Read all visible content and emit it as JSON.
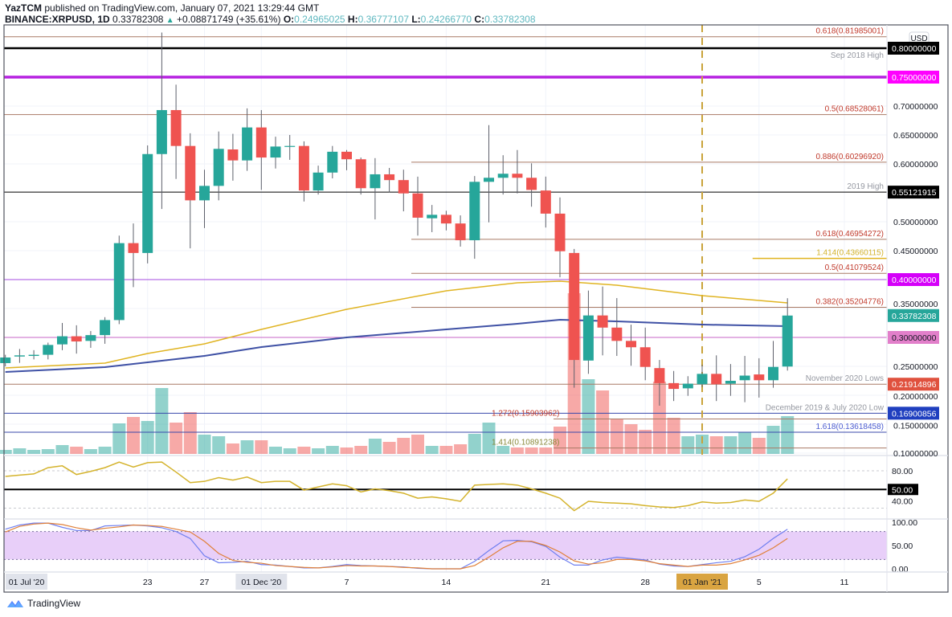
{
  "header": {
    "author": "YazTCM",
    "published": " published on TradingView.com, January 07, 2021 13:29:44 GMT",
    "symbol": "BINANCE:XRPUSD, 1D",
    "last": "0.33782308",
    "arrow": "▲",
    "change": "+0.08871749 (+35.61%)",
    "o_label": "O:",
    "o": "0.24965025",
    "h_label": "H:",
    "h": "0.36777107",
    "l_label": "L:",
    "l": "0.24266770",
    "c_label": "C:",
    "c": "0.33782308"
  },
  "colors": {
    "up": "#26a69a",
    "down": "#ef5350",
    "fib": "#a97a66",
    "fib_text": "#c0392b",
    "blue_level": "#3949ab",
    "ma_yellow": "#e0b422",
    "ma_blue": "#3f51a5",
    "rsi": "#d4b32c",
    "stoch_k": "#6f7ff0",
    "stoch_d": "#e0803a",
    "stoch_band": "#e8cff9",
    "jan_marker": "#c9a33a"
  },
  "price_axis": {
    "currency": "USD",
    "ticks": [
      {
        "price": 0.7,
        "label": "0.70000000"
      },
      {
        "price": 0.65,
        "label": "0.65000000"
      },
      {
        "price": 0.6,
        "label": "0.60000000"
      },
      {
        "price": 0.5,
        "label": "0.50000000"
      },
      {
        "price": 0.45,
        "label": "0.45000000"
      },
      {
        "price": 0.35,
        "label": "0.35000000"
      },
      {
        "price": 0.25,
        "label": "0.25000000"
      },
      {
        "price": 0.2,
        "label": "0.20000000"
      },
      {
        "price": 0.15,
        "label": "0.15000000"
      },
      {
        "price": 0.1,
        "label": "0.10000000"
      }
    ],
    "tags": [
      {
        "price": 0.8,
        "label": "0.80000000",
        "bg": "#000000",
        "fg": "#ffffff"
      },
      {
        "price": 0.75,
        "label": "0.75000000",
        "bg": "#ff00ff",
        "fg": "#ffffff"
      },
      {
        "price": 0.55121915,
        "label": "0.55121915",
        "bg": "#000000",
        "fg": "#ffffff"
      },
      {
        "price": 0.4,
        "label": "0.40000000",
        "bg": "#d500f9",
        "fg": "#ffffff"
      },
      {
        "price": 0.33782308,
        "label": "0.33782308",
        "bg": "#26a69a",
        "fg": "#ffffff"
      },
      {
        "price": 0.3,
        "label": "0.30000000",
        "bg": "#e27fca",
        "fg": "#131722"
      },
      {
        "price": 0.21914896,
        "label": "0.21914896",
        "bg": "#e0513e",
        "fg": "#ffffff"
      },
      {
        "price": 0.16900856,
        "label": "0.16900856",
        "bg": "#1f3fbf",
        "fg": "#ffffff"
      }
    ]
  },
  "levels": [
    {
      "price": 0.81985001,
      "label": "0.618(0.81985001)",
      "color": "#a97a66",
      "text_color": "#c0392b",
      "width": 1,
      "start": -1
    },
    {
      "price": 0.8,
      "label": "Sep 2018 High",
      "color": "#000000",
      "text_color": "#9598a1",
      "width": 2.5,
      "start": -1,
      "label_below": true
    },
    {
      "price": 0.75,
      "label": "",
      "color": "#b620e0",
      "width": 3.5,
      "start": -1
    },
    {
      "price": 0.68528061,
      "label": "0.5(0.68528061)",
      "color": "#a97a66",
      "text_color": "#c0392b",
      "width": 1,
      "start": -1
    },
    {
      "price": 0.6029692,
      "label": "0.886(0.60296920)",
      "color": "#a97a66",
      "text_color": "#c0392b",
      "width": 1,
      "start": 29
    },
    {
      "price": 0.55121915,
      "label": "2019 High",
      "color": "#000000",
      "text_color": "#9598a1",
      "width": 1,
      "start": -1
    },
    {
      "price": 0.46954272,
      "label": "0.618(0.46954272)",
      "color": "#a97a66",
      "text_color": "#c0392b",
      "width": 1,
      "start": 29
    },
    {
      "price": 0.43660115,
      "label": "1.414(0.43660115)",
      "color": "#e0b422",
      "text_color": "#d4b32c",
      "width": 1.5,
      "start": 53
    },
    {
      "price": 0.41079524,
      "label": "0.5(0.41079524)",
      "color": "#a97a66",
      "text_color": "#c0392b",
      "width": 1,
      "start": 29
    },
    {
      "price": 0.4,
      "label": "",
      "color": "#a64de0",
      "width": 1,
      "start": -1
    },
    {
      "price": 0.35204776,
      "label": "0.382(0.35204776)",
      "color": "#a97a66",
      "text_color": "#c0392b",
      "width": 1,
      "start": 29
    },
    {
      "price": 0.3,
      "label": "",
      "color": "#c764c7",
      "width": 1,
      "start": -1
    },
    {
      "price": 0.21914896,
      "label": "November 2020 Lows",
      "color": "#a97a66",
      "text_color": "#9598a1",
      "width": 1,
      "start": -1
    },
    {
      "price": 0.16900856,
      "label": "December 2019 & July 2020 Low",
      "color": "#3949ab",
      "text_color": "#9598a1",
      "width": 1,
      "start": -1
    },
    {
      "price": 0.15903962,
      "label": "1.272(0.15903962)",
      "color": "#a97a66",
      "text_color": "#c0392b",
      "width": 1,
      "start": 39,
      "label_left": true
    },
    {
      "price": 0.13618458,
      "label": "1.618(0.13618458)",
      "color": "#3949ab",
      "text_color": "#4a5bd0",
      "width": 1,
      "start": -1
    },
    {
      "price": 0.10891238,
      "label": "1.414(0.10891238)",
      "color": "#a97a66",
      "text_color": "#8a8a3a",
      "width": 1,
      "start": 39,
      "label_left": true
    }
  ],
  "rsi_axis": {
    "top_label": "80.00",
    "mid_tag": "50.00",
    "low_label": "40.00"
  },
  "stoch_axis": {
    "top_label": "100.00",
    "mid_label": "50.00",
    "low_label": "0.00"
  },
  "time_axis": {
    "sticky_label": "01 Jul '20",
    "ticks": [
      {
        "index": 10,
        "label": "23"
      },
      {
        "index": 14,
        "label": "27"
      },
      {
        "index": 18,
        "label": "01 Dec '20",
        "style": "gray"
      },
      {
        "index": 24,
        "label": "7"
      },
      {
        "index": 31,
        "label": "14"
      },
      {
        "index": 38,
        "label": "21"
      },
      {
        "index": 45,
        "label": "28"
      },
      {
        "index": 49,
        "label": "01 Jan '21",
        "style": "orange"
      },
      {
        "index": 53,
        "label": "5"
      },
      {
        "index": 59,
        "label": "11"
      }
    ],
    "marker_index": 49
  },
  "footer": {
    "brand": "TradingView"
  },
  "chart_data": {
    "type": "candlestick",
    "title": "BINANCE:XRPUSD, 1D",
    "first_date": "2020-11-13",
    "last_date": "2021-01-07",
    "ylim": [
      0.09,
      0.84
    ],
    "candles_ohlc": [
      [
        0.2556,
        0.27,
        0.25,
        0.2653
      ],
      [
        0.267,
        0.28,
        0.256,
        0.269
      ],
      [
        0.268,
        0.278,
        0.262,
        0.27
      ],
      [
        0.27,
        0.291,
        0.262,
        0.287
      ],
      [
        0.288,
        0.325,
        0.278,
        0.302
      ],
      [
        0.302,
        0.321,
        0.272,
        0.293
      ],
      [
        0.294,
        0.311,
        0.282,
        0.304
      ],
      [
        0.304,
        0.335,
        0.289,
        0.33
      ],
      [
        0.33,
        0.476,
        0.323,
        0.463
      ],
      [
        0.463,
        0.497,
        0.387,
        0.446
      ],
      [
        0.446,
        0.632,
        0.428,
        0.617
      ],
      [
        0.617,
        0.827,
        0.522,
        0.693
      ],
      [
        0.693,
        0.737,
        0.574,
        0.631
      ],
      [
        0.631,
        0.653,
        0.454,
        0.537
      ],
      [
        0.537,
        0.59,
        0.489,
        0.562
      ],
      [
        0.562,
        0.656,
        0.537,
        0.626
      ],
      [
        0.625,
        0.652,
        0.571,
        0.606
      ],
      [
        0.606,
        0.696,
        0.588,
        0.663
      ],
      [
        0.663,
        0.693,
        0.555,
        0.611
      ],
      [
        0.611,
        0.647,
        0.592,
        0.63
      ],
      [
        0.63,
        0.65,
        0.607,
        0.631
      ],
      [
        0.631,
        0.639,
        0.535,
        0.554
      ],
      [
        0.554,
        0.597,
        0.547,
        0.585
      ],
      [
        0.585,
        0.631,
        0.575,
        0.621
      ],
      [
        0.621,
        0.624,
        0.589,
        0.608
      ],
      [
        0.608,
        0.611,
        0.547,
        0.558
      ],
      [
        0.558,
        0.61,
        0.504,
        0.582
      ],
      [
        0.582,
        0.593,
        0.551,
        0.572
      ],
      [
        0.572,
        0.59,
        0.518,
        0.549
      ],
      [
        0.549,
        0.578,
        0.476,
        0.507
      ],
      [
        0.506,
        0.529,
        0.482,
        0.512
      ],
      [
        0.512,
        0.519,
        0.485,
        0.497
      ],
      [
        0.497,
        0.511,
        0.457,
        0.468
      ],
      [
        0.468,
        0.579,
        0.436,
        0.569
      ],
      [
        0.569,
        0.667,
        0.499,
        0.576
      ],
      [
        0.576,
        0.615,
        0.547,
        0.583
      ],
      [
        0.583,
        0.624,
        0.549,
        0.576
      ],
      [
        0.576,
        0.601,
        0.526,
        0.555
      ],
      [
        0.554,
        0.578,
        0.49,
        0.514
      ],
      [
        0.514,
        0.542,
        0.404,
        0.449
      ],
      [
        0.446,
        0.453,
        0.213,
        0.261
      ],
      [
        0.26,
        0.381,
        0.237,
        0.338
      ],
      [
        0.338,
        0.388,
        0.269,
        0.317
      ],
      [
        0.317,
        0.368,
        0.268,
        0.294
      ],
      [
        0.294,
        0.322,
        0.251,
        0.283
      ],
      [
        0.283,
        0.317,
        0.226,
        0.249
      ],
      [
        0.247,
        0.261,
        0.182,
        0.221
      ],
      [
        0.221,
        0.242,
        0.19,
        0.211
      ],
      [
        0.212,
        0.233,
        0.199,
        0.22
      ],
      [
        0.219,
        0.253,
        0.214,
        0.237
      ],
      [
        0.237,
        0.269,
        0.19,
        0.219
      ],
      [
        0.22,
        0.254,
        0.199,
        0.225
      ],
      [
        0.226,
        0.268,
        0.188,
        0.234
      ],
      [
        0.236,
        0.264,
        0.196,
        0.226
      ],
      [
        0.226,
        0.294,
        0.213,
        0.249
      ],
      [
        0.24965025,
        0.36777107,
        0.2426677,
        0.33782308
      ]
    ],
    "volume_relative": [
      5,
      7,
      5,
      6,
      11,
      9,
      6,
      9,
      38,
      46,
      41,
      82,
      39,
      52,
      24,
      22,
      13,
      17,
      17,
      9,
      7,
      9,
      7,
      10,
      8,
      10,
      19,
      15,
      20,
      24,
      10,
      10,
      12,
      25,
      39,
      10,
      8,
      8,
      8,
      34,
      200,
      93,
      79,
      43,
      37,
      30,
      90,
      45,
      22,
      24,
      22,
      22,
      27,
      20,
      35,
      47
    ],
    "ma_yellow": [
      [
        0,
        0.2472
      ],
      [
        7,
        0.2556
      ],
      [
        10,
        0.2722
      ],
      [
        14,
        0.2889
      ],
      [
        18,
        0.3139
      ],
      [
        24,
        0.3486
      ],
      [
        31,
        0.3806
      ],
      [
        36,
        0.3944
      ],
      [
        39,
        0.3972
      ],
      [
        43,
        0.3903
      ],
      [
        49,
        0.3722
      ],
      [
        55,
        0.3597
      ]
    ],
    "ma_blue": [
      [
        0,
        0.2403
      ],
      [
        7,
        0.2486
      ],
      [
        10,
        0.2569
      ],
      [
        14,
        0.2681
      ],
      [
        18,
        0.2833
      ],
      [
        24,
        0.3
      ],
      [
        31,
        0.3139
      ],
      [
        36,
        0.3236
      ],
      [
        39,
        0.3306
      ],
      [
        43,
        0.3278
      ],
      [
        49,
        0.3222
      ],
      [
        55,
        0.3194
      ]
    ],
    "rsi": [
      71,
      73,
      75,
      85,
      88,
      74,
      79,
      85,
      94,
      86,
      93,
      94,
      78,
      61,
      63,
      69,
      65,
      70,
      61,
      63,
      63,
      49,
      54,
      59,
      56,
      46,
      51,
      48,
      44,
      36,
      38,
      35,
      31,
      57,
      58,
      59,
      57,
      51,
      44,
      36,
      16,
      31,
      29,
      28,
      27,
      24,
      22,
      21,
      24,
      30,
      28,
      29,
      33,
      31,
      44,
      67
    ],
    "rsi_levels": [
      80,
      50,
      20
    ],
    "stoch_k": [
      85,
      94,
      98,
      98,
      89,
      82,
      82,
      92,
      93,
      94,
      92,
      88,
      80,
      65,
      28,
      13,
      14,
      16,
      9,
      8,
      5,
      2,
      2,
      5,
      9,
      7,
      6,
      5,
      4,
      1,
      0,
      0,
      0,
      16,
      39,
      60,
      61,
      58,
      48,
      25,
      8,
      8,
      19,
      25,
      22,
      19,
      10,
      6,
      5,
      9,
      13,
      16,
      26,
      42,
      65,
      85
    ],
    "stoch_d": [
      79,
      91,
      96,
      98,
      95,
      88,
      83,
      87,
      90,
      94,
      93,
      91,
      85,
      79,
      59,
      33,
      18,
      14,
      12,
      7,
      5,
      3,
      2,
      4,
      7,
      6,
      6,
      5,
      3,
      2,
      0,
      0,
      0,
      7,
      25,
      45,
      59,
      59,
      50,
      36,
      17,
      10,
      13,
      20,
      20,
      17,
      11,
      8,
      5,
      8,
      8,
      11,
      19,
      29,
      45,
      65
    ],
    "stoch_band": [
      20,
      80
    ]
  }
}
